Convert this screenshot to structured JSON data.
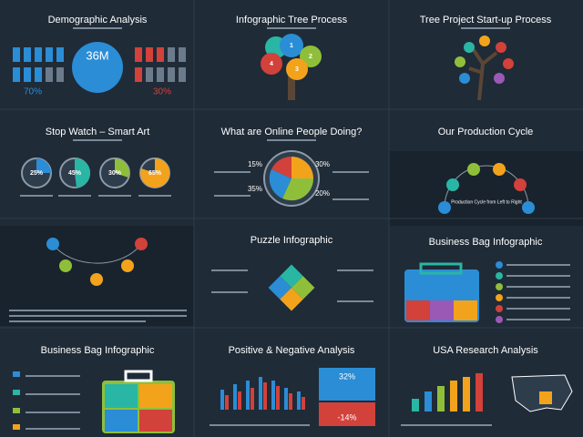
{
  "slides": [
    {
      "title": "Demographic Analysis",
      "stat": "36M",
      "left_pct": "70%",
      "right_pct": "30%"
    },
    {
      "title": "Infographic Tree Process",
      "steps": [
        "1",
        "2",
        "3",
        "4"
      ]
    },
    {
      "title": "Tree Project Start-up Process"
    },
    {
      "title": "Stop Watch – Smart Art",
      "labels": [
        "25%",
        "45%",
        "30%",
        "65%"
      ]
    },
    {
      "title": "What are Online People Doing?",
      "labels": [
        "15%",
        "30%",
        "35%",
        "20%"
      ]
    },
    {
      "title": "Our Production Cycle",
      "center": "Production Cycle from Left to Right"
    },
    {
      "title": "Puzzle Infographic"
    },
    {
      "title": "Business Bag Infographic"
    },
    {
      "title": "Business Bag Infographic"
    },
    {
      "title": "Positive & Negative Analysis",
      "positive": "32%",
      "negative": "-14%"
    },
    {
      "title": "USA Research Analysis"
    }
  ]
}
